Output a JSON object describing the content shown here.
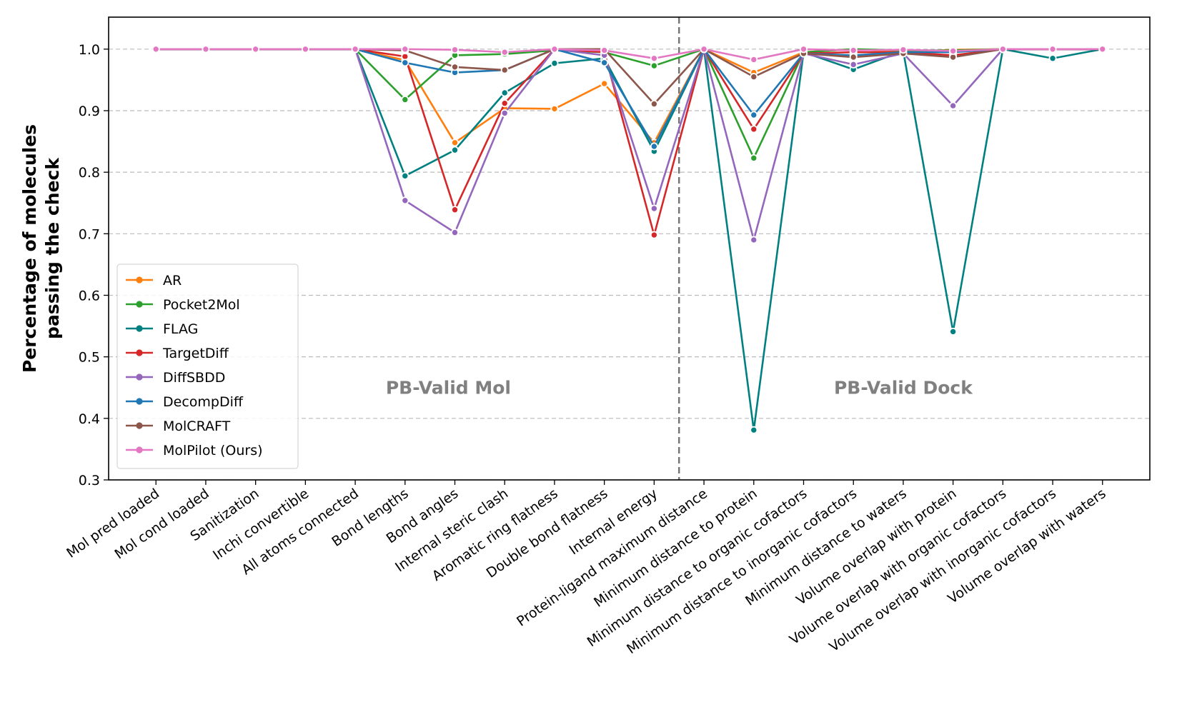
{
  "chart_data": {
    "type": "line",
    "ylabel": [
      "Percentage of molecules",
      "passing the check"
    ],
    "categories": [
      "Mol pred loaded",
      "Mol cond loaded",
      "Sanitization",
      "Inchi convertible",
      "All atoms connected",
      "Bond lengths",
      "Bond angles",
      "Internal steric clash",
      "Aromatic ring flatness",
      "Double bond flatness",
      "Internal energy",
      "Protein-ligand maximum distance",
      "Minimum distance to protein",
      "Minimum distance to organic cofactors",
      "Minimum distance to inorganic cofactors",
      "Minimum distance to waters",
      "Volume overlap with protein",
      "Volume overlap with organic cofactors",
      "Volume overlap with inorganic cofactors",
      "Volume overlap with waters"
    ],
    "series": [
      {
        "name": "AR",
        "color": "#ff7f0e",
        "values": [
          1,
          1,
          1,
          1,
          1,
          0.982,
          0.848,
          0.904,
          0.903,
          0.944,
          0.848,
          1,
          0.962,
          0.995,
          1,
          0.995,
          0.999,
          1,
          1,
          1
        ]
      },
      {
        "name": "Pocket2Mol",
        "color": "#2ca02c",
        "values": [
          1,
          1,
          1,
          1,
          1,
          0.918,
          0.99,
          0.992,
          0.998,
          0.995,
          0.973,
          1,
          0.823,
          0.995,
          1,
          0.998,
          0.998,
          1,
          1,
          1
        ]
      },
      {
        "name": "FLAG",
        "color": "#008080",
        "values": [
          1,
          1,
          1,
          1,
          1,
          0.794,
          0.836,
          0.929,
          0.977,
          0.985,
          0.834,
          1,
          0.381,
          0.995,
          0.967,
          0.997,
          0.541,
          1,
          0.985,
          1
        ]
      },
      {
        "name": "TargetDiff",
        "color": "#d62728",
        "values": [
          1,
          1,
          1,
          1,
          1,
          0.988,
          0.739,
          0.912,
          1,
          0.995,
          0.698,
          1,
          0.87,
          0.993,
          0.995,
          0.995,
          0.99,
          1,
          1,
          1
        ]
      },
      {
        "name": "DiffSBDD",
        "color": "#9467bd",
        "values": [
          1,
          1,
          1,
          1,
          1,
          0.754,
          0.702,
          0.896,
          1,
          0.99,
          0.741,
          1,
          0.69,
          0.993,
          0.975,
          0.993,
          0.908,
          1,
          1,
          1
        ]
      },
      {
        "name": "DecompDiff",
        "color": "#1f77b4",
        "values": [
          1,
          1,
          1,
          1,
          1,
          0.978,
          0.962,
          0.966,
          1,
          0.978,
          0.842,
          1,
          0.893,
          0.993,
          0.99,
          0.995,
          0.995,
          1,
          1,
          1
        ]
      },
      {
        "name": "MolCRAFT",
        "color": "#8c564b",
        "values": [
          1,
          1,
          1,
          1,
          1,
          0.998,
          0.971,
          0.966,
          1,
          1,
          0.911,
          1,
          0.955,
          0.993,
          0.987,
          0.993,
          0.987,
          1,
          1,
          1
        ]
      },
      {
        "name": "MolPilot (Ours)",
        "color": "#e377c2",
        "values": [
          1,
          1,
          1,
          1,
          1,
          1,
          0.999,
          0.995,
          1,
          0.998,
          0.985,
          1,
          0.983,
          1,
          0.998,
          0.999,
          0.997,
          1,
          1,
          1
        ]
      }
    ],
    "ylim": [
      0.3,
      1.052
    ],
    "yticks": [
      0.3,
      0.4,
      0.5,
      0.6,
      0.7,
      0.8,
      0.9,
      {
        "value": 1,
        "label": "1.0"
      }
    ],
    "grid": true,
    "legend": "lower left",
    "annotations": [
      "PB-Valid Mol",
      "PB-Valid Dock"
    ]
  }
}
